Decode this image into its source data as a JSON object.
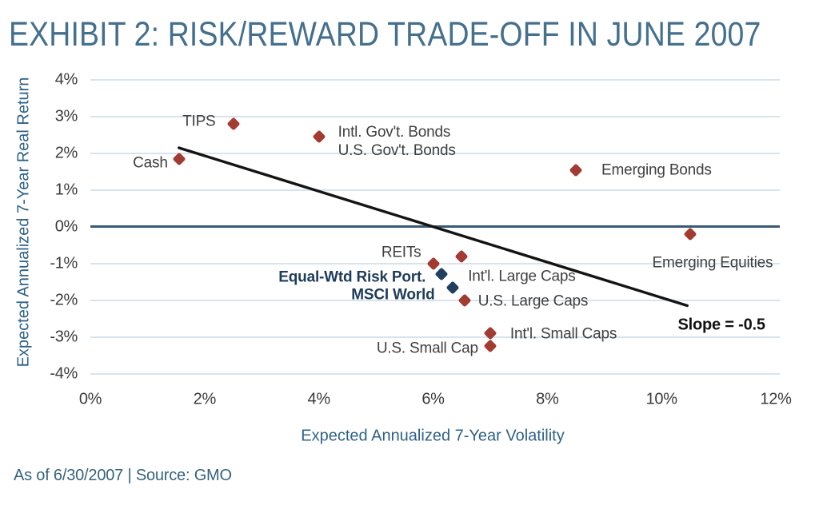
{
  "page": {
    "source_note": "As of 6/30/2007 | Source: GMO"
  },
  "colors": {
    "title": "#45708D",
    "axis_title": "#2E6288",
    "tick": "#3B3B3B",
    "grid": "#D7E4EE",
    "zero_line": "#3A5A74",
    "asset_marker": "#A23B31",
    "portfolio_marker": "#21405F",
    "portfolio_label": "#1F3C5B",
    "trend_line": "#141414",
    "source_note": "#35627F"
  },
  "chart_data": {
    "type": "scatter",
    "title": "EXHIBIT 2: RISK/REWARD TRADE-OFF IN JUNE 2007",
    "xlabel": "Expected Annualized 7-Year Volatility",
    "ylabel": "Expected Annualized 7-Year Real Return",
    "xlim": [
      0,
      12
    ],
    "ylim": [
      -4,
      4
    ],
    "grid": "horizontal",
    "legend": "none",
    "x_ticks": [
      {
        "v": 0,
        "label": "0%"
      },
      {
        "v": 2,
        "label": "2%"
      },
      {
        "v": 4,
        "label": "4%"
      },
      {
        "v": 6,
        "label": "6%"
      },
      {
        "v": 8,
        "label": "8%"
      },
      {
        "v": 10,
        "label": "10%"
      },
      {
        "v": 12,
        "label": "12%"
      }
    ],
    "y_ticks": [
      {
        "v": 4,
        "label": "4%"
      },
      {
        "v": 3,
        "label": "3%"
      },
      {
        "v": 2,
        "label": "2%"
      },
      {
        "v": 1,
        "label": "1%"
      },
      {
        "v": 0,
        "label": "0%"
      },
      {
        "v": -1,
        "label": "-1%"
      },
      {
        "v": -2,
        "label": "-2%"
      },
      {
        "v": -3,
        "label": "-3%"
      },
      {
        "v": -4,
        "label": "-4%"
      }
    ],
    "series": [
      {
        "name": "asset-classes",
        "marker": "diamond",
        "color": "#A23B31",
        "points": [
          {
            "label": "Cash",
            "x": 1.55,
            "y": 1.85,
            "label_align": "right",
            "label_dx": -14,
            "label_dy": 5
          },
          {
            "label": "TIPS",
            "x": 2.5,
            "y": 2.8,
            "label_align": "right",
            "label_dx": -22,
            "label_dy": -3
          },
          {
            "label": "Intl. Gov't. Bonds\nU.S. Gov't. Bonds",
            "x": 4.0,
            "y": 2.45,
            "label_align": "left",
            "label_dx": 24,
            "label_dy": 6
          },
          {
            "label": "Emerging Bonds",
            "x": 8.5,
            "y": 1.55,
            "label_align": "left",
            "label_dx": 32,
            "label_dy": 0
          },
          {
            "label": "Emerging Equities",
            "x": 10.5,
            "y": -0.2,
            "label_align": "center",
            "label_dx": 28,
            "label_dy": 36
          },
          {
            "label": "REITs",
            "x": 6.0,
            "y": -1.0,
            "label_align": "right",
            "label_dx": -15,
            "label_dy": -14
          },
          {
            "label": "Int'l. Large Caps",
            "x": 6.5,
            "y": -0.8,
            "label_align": "left",
            "label_dx": 8,
            "label_dy": 25
          },
          {
            "label": "U.S. Large Caps",
            "x": 6.55,
            "y": -2.0,
            "label_align": "left",
            "label_dx": 17,
            "label_dy": 1
          },
          {
            "label": "Int'l. Small Caps",
            "x": 7.0,
            "y": -2.9,
            "label_align": "left",
            "label_dx": 25,
            "label_dy": 1
          },
          {
            "label": "U.S. Small Cap",
            "x": 7.0,
            "y": -3.25,
            "label_align": "right",
            "label_dx": -15,
            "label_dy": 3
          }
        ]
      },
      {
        "name": "portfolios",
        "marker": "diamond",
        "color": "#21405F",
        "label_color": "#1F3C5B",
        "label_bold": true,
        "points": [
          {
            "label": "Equal-Wtd Risk Port.",
            "x": 6.15,
            "y": -1.3,
            "label_align": "right",
            "label_dx": -20,
            "label_dy": 4
          },
          {
            "label": "MSCI World",
            "x": 6.35,
            "y": -1.65,
            "label_align": "right",
            "label_dx": -23,
            "label_dy": 9
          }
        ]
      }
    ],
    "trendline": {
      "x1": 1.55,
      "y1": 2.15,
      "x2": 10.45,
      "y2": -2.15,
      "slope": -0.5
    },
    "annotations": [
      {
        "text": "Slope = -0.5",
        "x": 11.05,
        "y": -2.68,
        "align": "center"
      }
    ]
  }
}
